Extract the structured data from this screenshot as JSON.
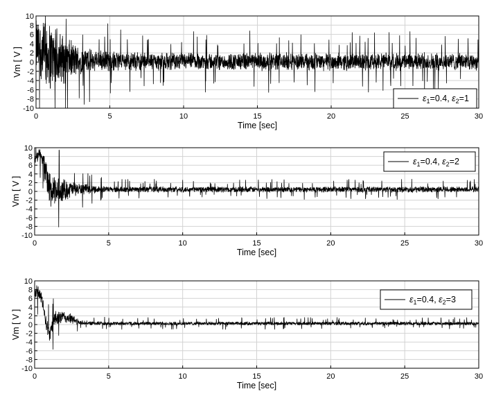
{
  "chart_data": [
    {
      "type": "line",
      "xlabel": "Time [sec]",
      "ylabel": "Vm [ V ]",
      "xlim": [
        0,
        30
      ],
      "ylim": [
        -10,
        10
      ],
      "xticks": [
        0,
        5,
        10,
        15,
        20,
        25,
        30
      ],
      "yticks": [
        10,
        8,
        6,
        4,
        2,
        0,
        -2,
        -4,
        -6,
        -8,
        -10
      ],
      "grid": true,
      "legend_placement": "bottom-right",
      "series": [
        {
          "legend_parts": [
            "ε",
            "1",
            "=0.4, ",
            "ε",
            "2",
            "=1"
          ],
          "color": "#000000",
          "envelope": {
            "t": [
              0,
              0.5,
              1,
              1.5,
              2,
              3,
              4,
              5,
              6,
              8,
              10,
              15,
              20,
              25,
              30
            ],
            "upper": [
              10,
              10,
              9.5,
              8,
              6,
              3.5,
              3,
              2.8,
              2.5,
              2.3,
              2.2,
              2.2,
              2.2,
              2.2,
              2.2
            ],
            "lower": [
              -3,
              -6,
              -7.5,
              -6.5,
              -5,
              -3,
              -2.5,
              -2.3,
              -2,
              -2,
              -2,
              -2,
              -2,
              -2,
              -2
            ]
          }
        }
      ]
    },
    {
      "type": "line",
      "xlabel": "Time [sec]",
      "ylabel": "Vm [ V ]",
      "xlim": [
        0,
        30
      ],
      "ylim": [
        -10,
        10
      ],
      "xticks": [
        0,
        5,
        10,
        15,
        20,
        25,
        30
      ],
      "yticks": [
        10,
        8,
        6,
        4,
        2,
        0,
        -2,
        -4,
        -6,
        -8,
        -10
      ],
      "grid": true,
      "legend_placement": "top-right",
      "series": [
        {
          "legend_parts": [
            "ε",
            "1",
            "=0.4, ",
            "ε",
            "2",
            "=2"
          ],
          "color": "#000000",
          "envelope": {
            "t": [
              0,
              0.3,
              0.6,
              0.9,
              1.2,
              1.5,
              2,
              2.5,
              3,
              4,
              5,
              10,
              20,
              30
            ],
            "upper": [
              8,
              10,
              9.5,
              6,
              4,
              3.5,
              3.2,
              2.5,
              2,
              1.5,
              1.2,
              1.2,
              1.2,
              1.2
            ],
            "lower": [
              6,
              7,
              5,
              -3,
              -5,
              -3.5,
              -2.5,
              -1.5,
              -1,
              -0.5,
              -0.3,
              -0.3,
              -0.3,
              -0.3
            ]
          }
        }
      ]
    },
    {
      "type": "line",
      "xlabel": "Time [sec]",
      "ylabel": "Vm [ V ]",
      "xlim": [
        0,
        30
      ],
      "ylim": [
        -10,
        10
      ],
      "xticks": [
        0,
        5,
        10,
        15,
        20,
        25,
        30
      ],
      "yticks": [
        10,
        8,
        6,
        4,
        2,
        0,
        -2,
        -4,
        -6,
        -8,
        -10
      ],
      "grid": true,
      "legend_placement": "top-right",
      "series": [
        {
          "legend_parts": [
            "ε",
            "1",
            "=0.4, ",
            "ε",
            "2",
            "=3"
          ],
          "color": "#000000",
          "envelope": {
            "t": [
              0,
              0.2,
              0.5,
              0.8,
              1,
              1.3,
              1.8,
              2.5,
              3,
              4,
              5,
              10,
              20,
              30
            ],
            "upper": [
              8,
              10,
              7,
              2,
              0,
              3,
              3.5,
              2.5,
              1.2,
              0.8,
              0.7,
              0.7,
              0.7,
              0.7
            ],
            "lower": [
              6,
              6,
              4,
              -2,
              -4,
              -1,
              0,
              0,
              -0.2,
              -0.2,
              -0.2,
              -0.2,
              -0.2,
              -0.2
            ]
          }
        }
      ]
    }
  ]
}
